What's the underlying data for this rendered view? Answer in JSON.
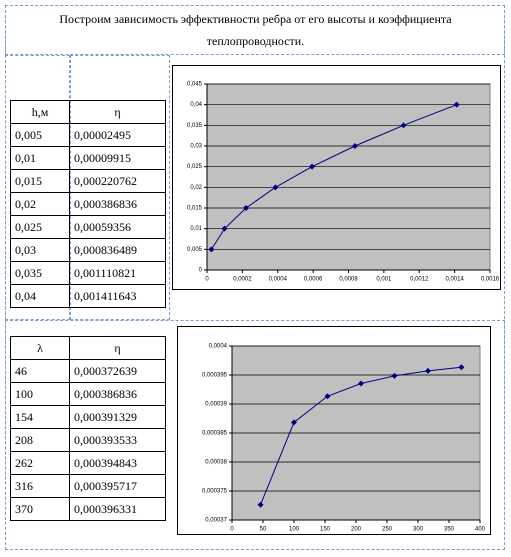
{
  "title": "Построим зависимость эффективности ребра от его высоты и коэффициента теплопроводности.",
  "tables": [
    {
      "header": [
        "h,м",
        "η"
      ],
      "rows": [
        [
          "0,005",
          "0,00002495"
        ],
        [
          "0,01",
          "0,00009915"
        ],
        [
          "0,015",
          "0,000220762"
        ],
        [
          "0,02",
          "0,000386836"
        ],
        [
          "0,025",
          "0,00059356"
        ],
        [
          "0,03",
          "0,000836489"
        ],
        [
          "0,035",
          "0,001110821"
        ],
        [
          "0,04",
          "0,001411643"
        ]
      ]
    },
    {
      "header": [
        "λ",
        "η"
      ],
      "rows": [
        [
          "46",
          "0,000372639"
        ],
        [
          "100",
          "0,000386836"
        ],
        [
          "154",
          "0,000391329"
        ],
        [
          "208",
          "0,000393533"
        ],
        [
          "262",
          "0,000394843"
        ],
        [
          "316",
          "0,000395717"
        ],
        [
          "370",
          "0,000396331"
        ]
      ]
    }
  ],
  "chart_data": [
    {
      "type": "scatter",
      "color": "#000080",
      "x": [
        2.495e-05,
        9.915e-05,
        0.000220762,
        0.000386836,
        0.00059356,
        0.000836489,
        0.001110821,
        0.001411643
      ],
      "values": [
        0.005,
        0.01,
        0.015,
        0.02,
        0.025,
        0.03,
        0.035,
        0.04
      ],
      "xlim": [
        0,
        0.0016
      ],
      "ylim": [
        0,
        0.045
      ],
      "xticks": [
        0,
        {
          "value": 0.0002,
          "label": "0,0002"
        },
        {
          "value": 0.0004,
          "label": "0,0004"
        },
        {
          "value": 0.0006,
          "label": "0,0006"
        },
        {
          "value": 0.0008,
          "label": "0,0008"
        },
        {
          "value": 0.001,
          "label": "0,001"
        },
        {
          "value": 0.0012,
          "label": "0,0012"
        },
        {
          "value": 0.0014,
          "label": "0,0014"
        },
        {
          "value": 0.0016,
          "label": "0,0016"
        }
      ],
      "yticks": [
        0,
        {
          "value": 0.005,
          "label": "0,005"
        },
        {
          "value": 0.01,
          "label": "0,01"
        },
        {
          "value": 0.015,
          "label": "0,015"
        },
        {
          "value": 0.02,
          "label": "0,02"
        },
        {
          "value": 0.025,
          "label": "0,025"
        },
        {
          "value": 0.03,
          "label": "0,03"
        },
        {
          "value": 0.035,
          "label": "0,035"
        },
        {
          "value": 0.04,
          "label": "0,04"
        },
        {
          "value": 0.045,
          "label": "0,045"
        }
      ],
      "grid": true
    },
    {
      "type": "scatter",
      "color": "#000080",
      "x": [
        46,
        100,
        154,
        208,
        262,
        316,
        370
      ],
      "values": [
        0.000372639,
        0.000386836,
        0.000391329,
        0.000393533,
        0.000394843,
        0.000395717,
        0.000396331
      ],
      "xlim": [
        0,
        400
      ],
      "ylim": [
        0.00037,
        0.0004
      ],
      "xticks": [
        0,
        50,
        100,
        150,
        200,
        250,
        300,
        350,
        400
      ],
      "yticks": [
        {
          "value": 0.00037,
          "label": "0,00037"
        },
        {
          "value": 0.000375,
          "label": "0,000375"
        },
        {
          "value": 0.00038,
          "label": "0,00038"
        },
        {
          "value": 0.000385,
          "label": "0,000385"
        },
        {
          "value": 0.00039,
          "label": "0,00039"
        },
        {
          "value": 0.000395,
          "label": "0,000395"
        },
        {
          "value": 0.0004,
          "label": "0,0004"
        }
      ],
      "grid": true
    }
  ]
}
